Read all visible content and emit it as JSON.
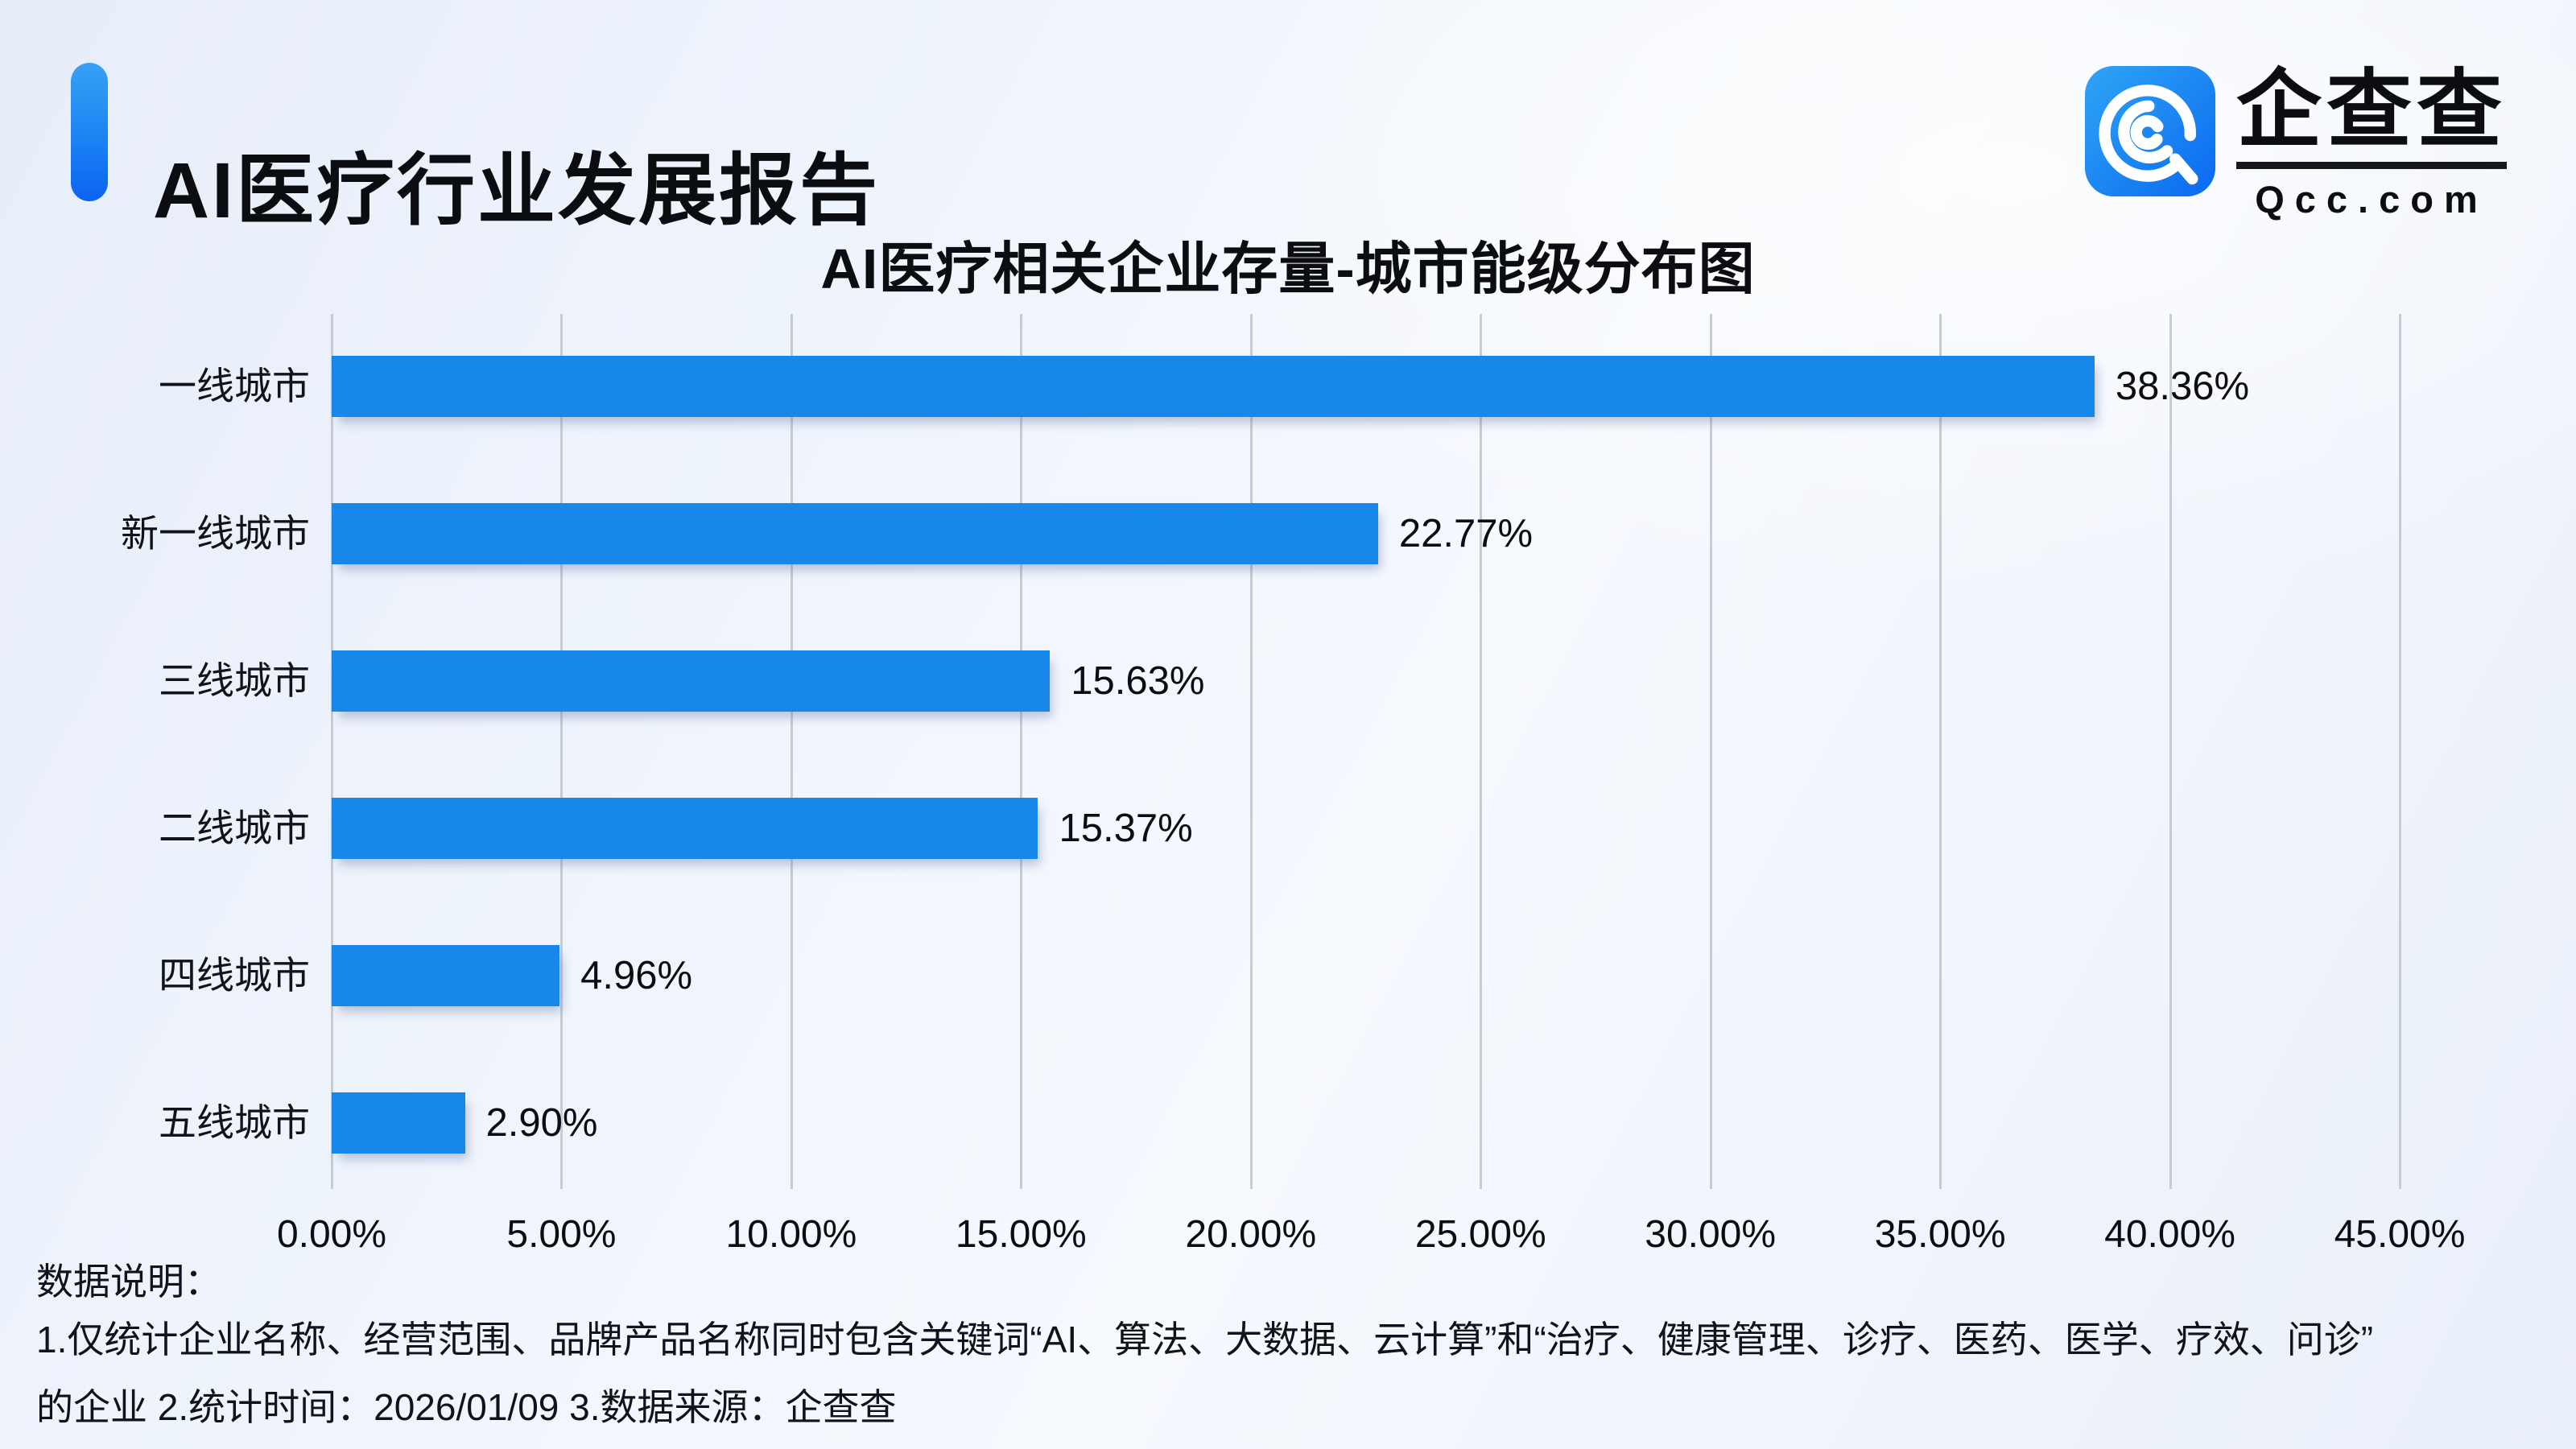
{
  "header": {
    "title": "AI医疗行业发展报告"
  },
  "logo": {
    "brand_cn": "企查查",
    "brand_domain": "Qcc.com",
    "icon": "qcc-logo-icon",
    "icon_gradient_top": "#2fa5f6",
    "icon_gradient_bottom": "#0b69f0"
  },
  "chart_data": {
    "type": "bar",
    "orientation": "horizontal",
    "title": "AI医疗相关企业存量-城市能级分布图",
    "categories": [
      "一线城市",
      "新一线城市",
      "三线城市",
      "二线城市",
      "四线城市",
      "五线城市"
    ],
    "values": [
      38.36,
      22.77,
      15.63,
      15.37,
      4.96,
      2.9
    ],
    "value_labels": [
      "38.36%",
      "22.77%",
      "15.63%",
      "15.37%",
      "4.96%",
      "2.90%"
    ],
    "x_ticks": [
      "0.00%",
      "5.00%",
      "10.00%",
      "15.00%",
      "20.00%",
      "25.00%",
      "30.00%",
      "35.00%",
      "40.00%",
      "45.00%"
    ],
    "xlim": [
      0,
      45
    ],
    "xlabel": "",
    "ylabel": "",
    "grid": true,
    "legend": false,
    "bar_color": "#1787e9",
    "gridline_color": "#c7cbd4"
  },
  "footer": {
    "label": "数据说明：",
    "note_line1": "1.仅统计企业名称、经营范围、品牌产品名称同时包含关键词“AI、算法、大数据、云计算”和“治疗、健康管理、诊疗、医药、医学、疗效、问诊”",
    "note_line2": "的企业  2.统计时间：2026/01/09   3.数据来源：企查查"
  },
  "colors": {
    "accent_top": "#38a1f5",
    "accent_bottom": "#0a64f1",
    "text": "#0c0d10"
  }
}
